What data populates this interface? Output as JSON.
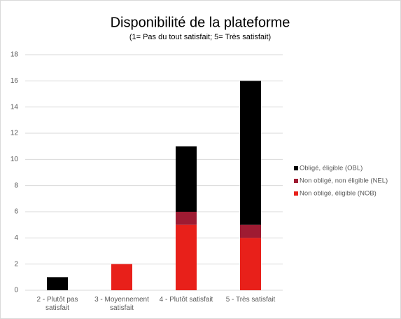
{
  "chart_data": {
    "type": "bar",
    "stacked": true,
    "title": "Disponibilité de la plateforme",
    "subtitle": "(1= Pas du tout satisfait; 5= Très satisfait)",
    "categories": [
      "2 - Plutôt pas satisfait",
      "3 - Moyennement satisfait",
      "4 - Plutôt satisfait",
      "5 - Très satisfait"
    ],
    "series": [
      {
        "name": "Obligé, éligible (OBL)",
        "color": "#000000",
        "values": [
          1,
          0,
          5,
          11
        ]
      },
      {
        "name": "Non obligé, non éligible (NEL)",
        "color": "#9e1b32",
        "values": [
          0,
          0,
          1,
          1
        ]
      },
      {
        "name": "Non obligé, éligible (NOB)",
        "color": "#e8201a",
        "values": [
          0,
          2,
          5,
          4
        ]
      }
    ],
    "ylim": [
      0,
      18
    ],
    "yticks": [
      0,
      2,
      4,
      6,
      8,
      10,
      12,
      14,
      16,
      18
    ],
    "grid": true,
    "legend": "right"
  }
}
